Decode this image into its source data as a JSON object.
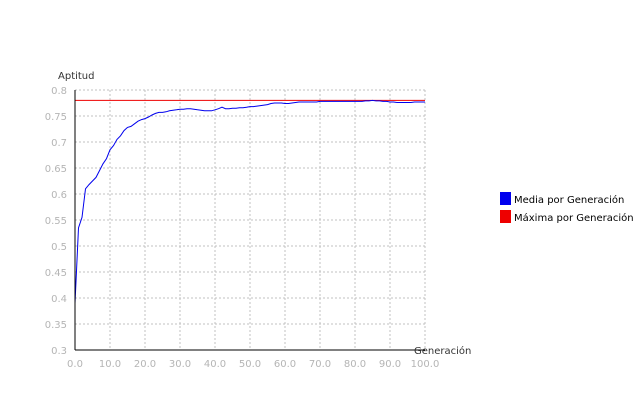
{
  "chart_data": {
    "type": "line",
    "ylabel": "Aptitud",
    "xlabel": "Generación",
    "xlim": [
      0,
      100
    ],
    "ylim": [
      0.3,
      0.8
    ],
    "x_ticks": [
      "0.0",
      "10.0",
      "20.0",
      "30.0",
      "40.0",
      "50.0",
      "60.0",
      "70.0",
      "80.0",
      "90.0",
      "100.0"
    ],
    "y_ticks": [
      "0.3",
      "0.35",
      "0.4",
      "0.45",
      "0.5",
      "0.55",
      "0.6",
      "0.65",
      "0.7",
      "0.75",
      "0.8"
    ],
    "grid": true,
    "legend_position": "right",
    "series": [
      {
        "name": "Media por Generación",
        "color": "#0000ee",
        "x": [
          0,
          1,
          2,
          3,
          4,
          5,
          6,
          7,
          8,
          9,
          10,
          11,
          12,
          13,
          14,
          15,
          16,
          17,
          18,
          19,
          20,
          21,
          22,
          23,
          24,
          25,
          26,
          27,
          28,
          29,
          30,
          31,
          32,
          33,
          34,
          35,
          36,
          37,
          38,
          39,
          40,
          41,
          42,
          43,
          44,
          45,
          46,
          47,
          48,
          49,
          50,
          51,
          52,
          53,
          54,
          55,
          56,
          57,
          58,
          59,
          60,
          61,
          62,
          63,
          64,
          65,
          66,
          67,
          68,
          69,
          70,
          71,
          72,
          73,
          74,
          75,
          76,
          77,
          78,
          79,
          80,
          81,
          82,
          83,
          84,
          85,
          86,
          87,
          88,
          89,
          90,
          91,
          92,
          93,
          94,
          95,
          96,
          97,
          98,
          99,
          100
        ],
        "y": [
          0.39,
          0.535,
          0.555,
          0.61,
          0.618,
          0.625,
          0.632,
          0.645,
          0.658,
          0.668,
          0.685,
          0.693,
          0.705,
          0.712,
          0.722,
          0.728,
          0.73,
          0.735,
          0.74,
          0.743,
          0.745,
          0.748,
          0.752,
          0.755,
          0.757,
          0.757,
          0.758,
          0.76,
          0.761,
          0.762,
          0.763,
          0.763,
          0.764,
          0.764,
          0.763,
          0.762,
          0.761,
          0.76,
          0.76,
          0.76,
          0.762,
          0.764,
          0.767,
          0.764,
          0.764,
          0.765,
          0.765,
          0.766,
          0.766,
          0.767,
          0.768,
          0.768,
          0.769,
          0.77,
          0.771,
          0.772,
          0.774,
          0.775,
          0.775,
          0.775,
          0.774,
          0.774,
          0.775,
          0.776,
          0.777,
          0.777,
          0.777,
          0.777,
          0.777,
          0.777,
          0.778,
          0.778,
          0.778,
          0.778,
          0.778,
          0.778,
          0.778,
          0.778,
          0.778,
          0.778,
          0.778,
          0.778,
          0.778,
          0.779,
          0.779,
          0.78,
          0.779,
          0.779,
          0.778,
          0.778,
          0.777,
          0.777,
          0.776,
          0.776,
          0.776,
          0.776,
          0.776,
          0.777,
          0.777,
          0.777,
          0.777
        ]
      },
      {
        "name": "Máxima por Generación",
        "color": "#ee0000",
        "x": [
          0,
          100
        ],
        "y": [
          0.78,
          0.78
        ]
      }
    ]
  }
}
